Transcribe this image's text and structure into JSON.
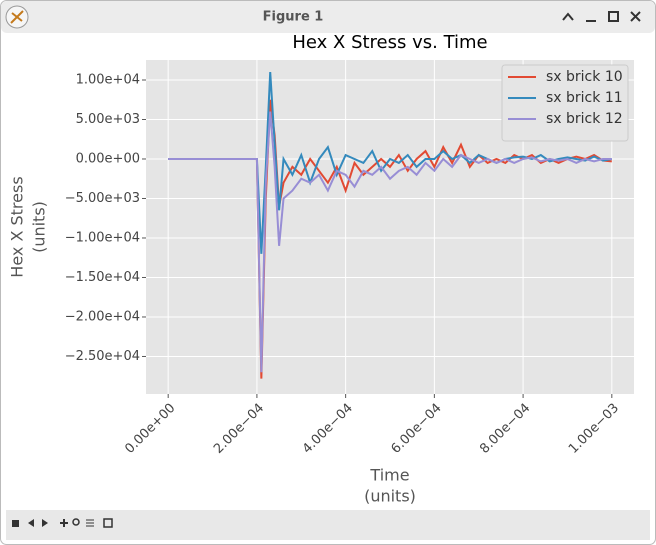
{
  "window_title": "Figure 1",
  "chart_data": {
    "type": "line",
    "title": "Hex X Stress vs. Time",
    "xlabel": [
      "Time",
      "(units)"
    ],
    "ylabel": [
      "Hex X Stress",
      "(units)"
    ],
    "x": [
      0,
      0.0001,
      0.0002,
      0.00021,
      0.00022,
      0.00023,
      0.00024,
      0.00025,
      0.00026,
      0.00028,
      0.0003,
      0.00032,
      0.00034,
      0.00036,
      0.00038,
      0.0004,
      0.00042,
      0.00044,
      0.00046,
      0.00048,
      0.0005,
      0.00052,
      0.00054,
      0.00056,
      0.00058,
      0.0006,
      0.00062,
      0.00064,
      0.00066,
      0.00068,
      0.0007,
      0.00072,
      0.00074,
      0.00076,
      0.00078,
      0.0008,
      0.00082,
      0.00084,
      0.00086,
      0.00088,
      0.0009,
      0.00092,
      0.00094,
      0.00096,
      0.00098,
      0.001
    ],
    "series": [
      {
        "name": "sx brick 10",
        "color": "#e24a33",
        "values": [
          0,
          0,
          0,
          -27800,
          -5000,
          7500,
          3000,
          -6000,
          -3000,
          -1000,
          -2000,
          0,
          -1500,
          -3000,
          -1000,
          -4000,
          -500,
          -2000,
          -1000,
          0,
          -1000,
          500,
          -1500,
          0,
          1000,
          -1000,
          1500,
          -500,
          1800,
          -1000,
          500,
          -500,
          0,
          -500,
          500,
          0,
          500,
          -500,
          0,
          -500,
          0,
          300,
          0,
          500,
          -200,
          -300
        ]
      },
      {
        "name": "sx brick 11",
        "color": "#348abd",
        "values": [
          0,
          0,
          0,
          -12000,
          -1000,
          11000,
          2000,
          -6500,
          0,
          -2000,
          500,
          -3000,
          0,
          1500,
          -2000,
          500,
          0,
          -500,
          1000,
          -1500,
          0,
          -500,
          500,
          -1000,
          0,
          0,
          1000,
          0,
          500,
          -500,
          500,
          0,
          -500,
          0,
          200,
          300,
          0,
          500,
          -300,
          0,
          200,
          0,
          -200,
          300,
          -200,
          0
        ]
      },
      {
        "name": "sx brick 12",
        "color": "#988ed5",
        "values": [
          0,
          0,
          0,
          -27000,
          -3000,
          6000,
          -1000,
          -11000,
          -5000,
          -4000,
          -2500,
          -3000,
          -2000,
          -4000,
          -1500,
          -2000,
          -3500,
          -1500,
          -2000,
          -1000,
          -2500,
          -1500,
          -1000,
          -2000,
          -500,
          -1500,
          0,
          -1000,
          500,
          0,
          -500,
          0,
          -500,
          0,
          -500,
          0,
          200,
          -300,
          0,
          -200,
          0,
          -500,
          0,
          -300,
          0,
          0
        ]
      }
    ],
    "xlim": [
      -5e-05,
      0.00105
    ],
    "ylim": [
      -29750,
      12530
    ],
    "xticks": [
      {
        "value": 0,
        "label": "0.00e+00"
      },
      {
        "value": 0.0002,
        "label": "2.00e−04"
      },
      {
        "value": 0.0004,
        "label": "4.00e−04"
      },
      {
        "value": 0.0006,
        "label": "6.00e−04"
      },
      {
        "value": 0.0008,
        "label": "8.00e−04"
      },
      {
        "value": 0.001,
        "label": "1.00e−03"
      }
    ],
    "yticks": [
      {
        "value": -25000,
        "label": "−2.50e+04"
      },
      {
        "value": -20000,
        "label": "−2.00e+04"
      },
      {
        "value": -15000,
        "label": "−1.50e+04"
      },
      {
        "value": -10000,
        "label": "−1.00e+04"
      },
      {
        "value": -5000,
        "label": "−5.00e+03"
      },
      {
        "value": 0,
        "label": "0.00e+00"
      },
      {
        "value": 5000,
        "label": "5.00e+03"
      },
      {
        "value": 10000,
        "label": "1.00e+04"
      }
    ],
    "grid": true,
    "legend": "upper right"
  }
}
